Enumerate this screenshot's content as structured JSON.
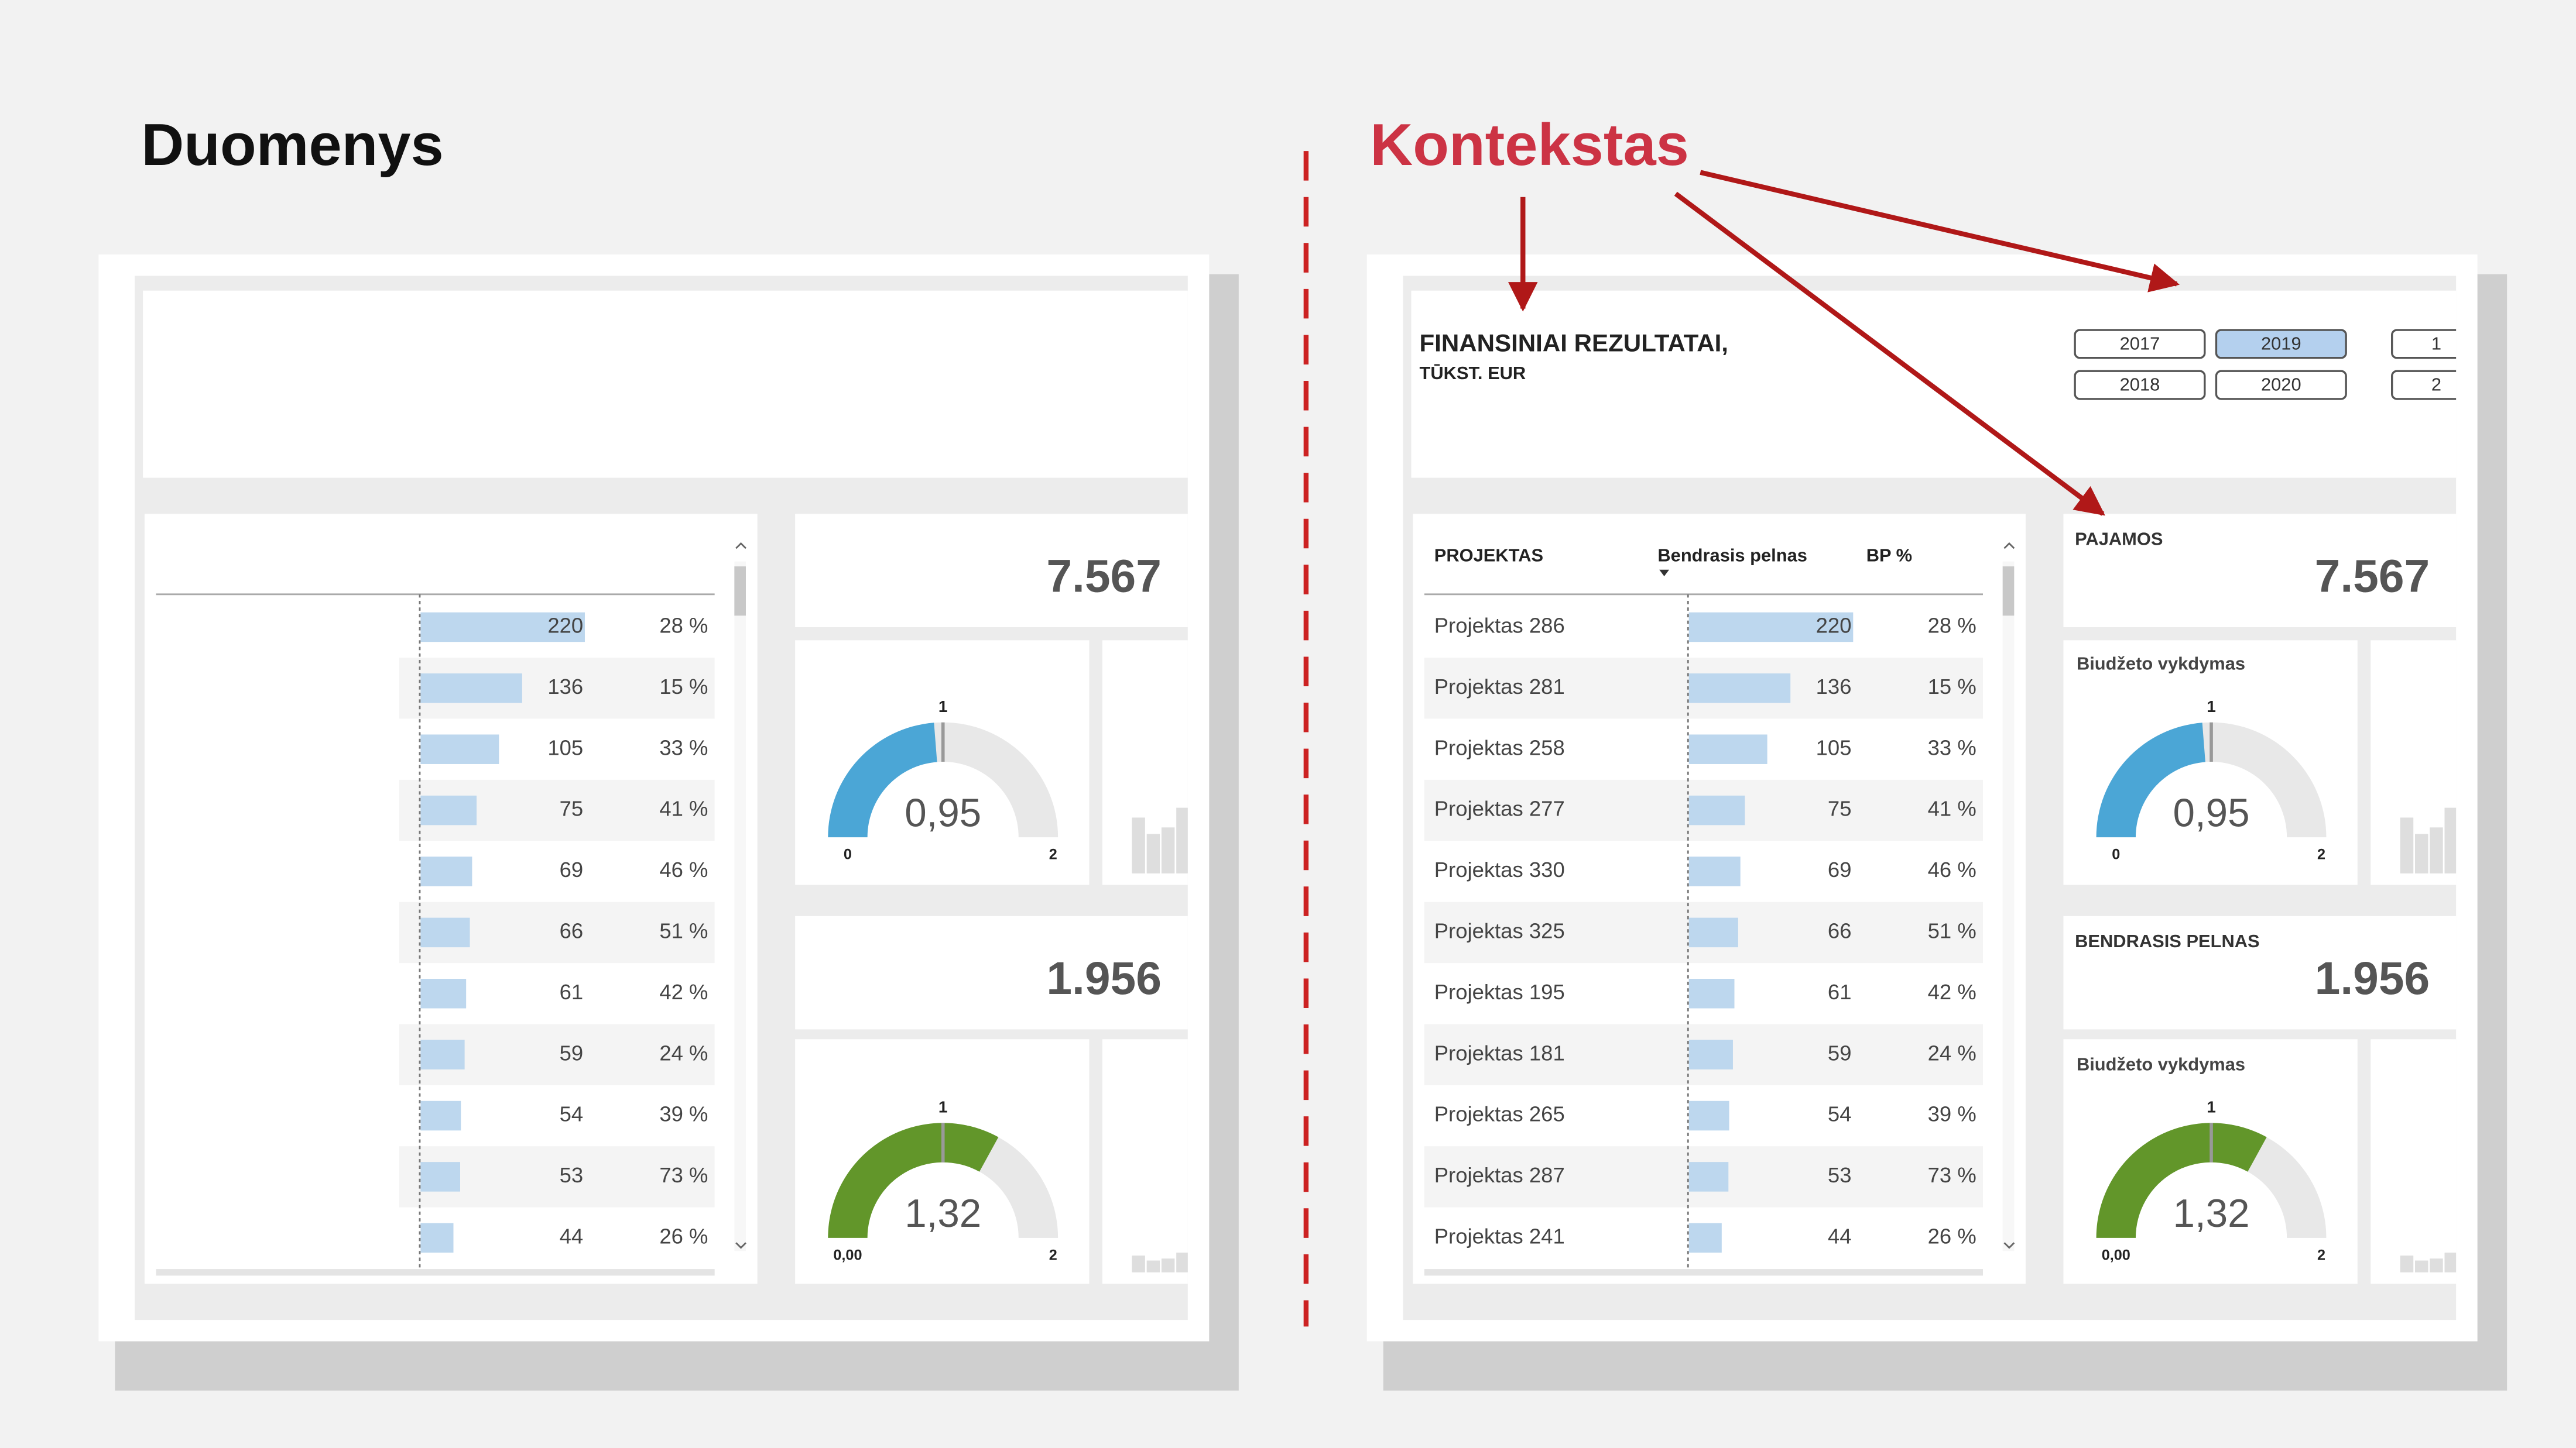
{
  "left_title": "Duomenys",
  "right_title": "Kontekstas",
  "header": {
    "title": "FINANSINIAI REZULTATAI,",
    "subtitle": "TŪKST. EUR"
  },
  "years": {
    "items": [
      "2017",
      "2018",
      "2019",
      "2020"
    ],
    "selected": "2019",
    "partial": [
      "1",
      "2"
    ]
  },
  "table": {
    "columns": [
      "PROJEKTAS",
      "Bendrasis pelnas",
      "BP %"
    ],
    "bar_color": "#bdd7ee",
    "rows": [
      {
        "name": "Projektas 286",
        "profit": 220,
        "pct": "28 %"
      },
      {
        "name": "Projektas 281",
        "profit": 136,
        "pct": "15 %"
      },
      {
        "name": "Projektas 258",
        "profit": 105,
        "pct": "33 %"
      },
      {
        "name": "Projektas 277",
        "profit": 75,
        "pct": "41 %"
      },
      {
        "name": "Projektas 330",
        "profit": 69,
        "pct": "46 %"
      },
      {
        "name": "Projektas 325",
        "profit": 66,
        "pct": "51 %"
      },
      {
        "name": "Projektas 195",
        "profit": 61,
        "pct": "42 %"
      },
      {
        "name": "Projektas 181",
        "profit": 59,
        "pct": "24 %"
      },
      {
        "name": "Projektas 265",
        "profit": 54,
        "pct": "39 %"
      },
      {
        "name": "Projektas 287",
        "profit": 53,
        "pct": "73 %"
      },
      {
        "name": "Projektas 241",
        "profit": 44,
        "pct": "26 %"
      }
    ]
  },
  "kpis": {
    "revenue": {
      "label": "PAJAMOS",
      "value": "7.567"
    },
    "gauge1": {
      "label": "Biudžeto vykdymas",
      "value": 0.95,
      "value_label": "0,95",
      "min": {
        "value": 0,
        "label": "0"
      },
      "max": 2,
      "target": 1,
      "color": "#4ba6d6"
    },
    "profit": {
      "label": "BENDRASIS PELNAS",
      "value": "1.956"
    },
    "gauge2": {
      "label": "Biudžeto vykdymas",
      "value": 1.32,
      "value_label": "1,32",
      "min": {
        "value": 0,
        "label": "0,00"
      },
      "max": 2,
      "target": 1,
      "color": "#62962a"
    }
  }
}
